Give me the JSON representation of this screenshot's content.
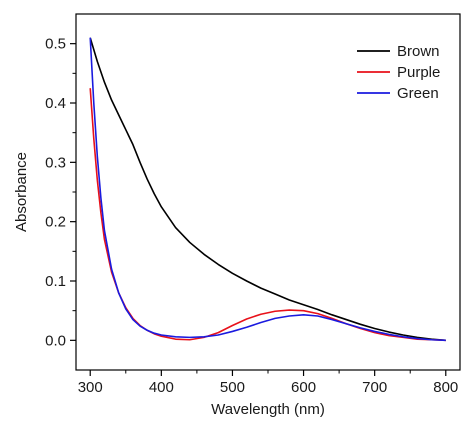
{
  "chart_data": {
    "type": "line",
    "title": "",
    "xlabel": "Wavelength (nm)",
    "ylabel": "Absorbance",
    "xlim": [
      280,
      820
    ],
    "ylim": [
      -0.05,
      0.55
    ],
    "xticks": [
      300,
      400,
      500,
      600,
      700,
      800
    ],
    "yticks": [
      0.0,
      0.1,
      0.2,
      0.3,
      0.4,
      0.5
    ],
    "xtick_labels": [
      "300",
      "400",
      "500",
      "600",
      "700",
      "800"
    ],
    "ytick_labels": [
      "0.0",
      "0.1",
      "0.2",
      "0.3",
      "0.4",
      "0.5"
    ],
    "grid": false,
    "legend_position": "top-right",
    "series": [
      {
        "name": "Brown",
        "color": "#000000",
        "x": [
          300,
          310,
          320,
          330,
          340,
          350,
          360,
          370,
          380,
          390,
          400,
          420,
          440,
          460,
          480,
          500,
          520,
          540,
          560,
          580,
          600,
          620,
          640,
          660,
          680,
          700,
          720,
          740,
          760,
          780,
          800
        ],
        "y": [
          0.51,
          0.47,
          0.435,
          0.405,
          0.38,
          0.355,
          0.33,
          0.3,
          0.272,
          0.247,
          0.225,
          0.19,
          0.165,
          0.145,
          0.128,
          0.113,
          0.1,
          0.088,
          0.078,
          0.068,
          0.06,
          0.052,
          0.043,
          0.035,
          0.027,
          0.02,
          0.014,
          0.009,
          0.005,
          0.002,
          0.0
        ]
      },
      {
        "name": "Purple",
        "color": "#e8111a",
        "x": [
          300,
          305,
          310,
          315,
          320,
          330,
          340,
          350,
          360,
          370,
          380,
          390,
          400,
          420,
          440,
          460,
          480,
          500,
          520,
          540,
          560,
          580,
          600,
          620,
          640,
          660,
          680,
          700,
          720,
          740,
          760,
          780,
          800
        ],
        "y": [
          0.425,
          0.34,
          0.27,
          0.215,
          0.17,
          0.115,
          0.08,
          0.055,
          0.037,
          0.025,
          0.017,
          0.011,
          0.007,
          0.002,
          0.001,
          0.005,
          0.013,
          0.025,
          0.036,
          0.044,
          0.049,
          0.051,
          0.05,
          0.045,
          0.037,
          0.028,
          0.02,
          0.013,
          0.008,
          0.005,
          0.002,
          0.001,
          0.0
        ]
      },
      {
        "name": "Green",
        "color": "#1a1adf",
        "x": [
          300,
          305,
          310,
          315,
          320,
          330,
          340,
          350,
          360,
          370,
          380,
          390,
          400,
          420,
          440,
          460,
          480,
          500,
          520,
          540,
          560,
          580,
          600,
          620,
          640,
          660,
          680,
          700,
          720,
          740,
          760,
          780,
          800
        ],
        "y": [
          0.51,
          0.4,
          0.31,
          0.24,
          0.185,
          0.12,
          0.08,
          0.053,
          0.035,
          0.024,
          0.017,
          0.012,
          0.009,
          0.006,
          0.005,
          0.006,
          0.009,
          0.015,
          0.022,
          0.03,
          0.037,
          0.041,
          0.043,
          0.041,
          0.035,
          0.028,
          0.021,
          0.015,
          0.01,
          0.006,
          0.003,
          0.001,
          0.0
        ]
      }
    ]
  }
}
